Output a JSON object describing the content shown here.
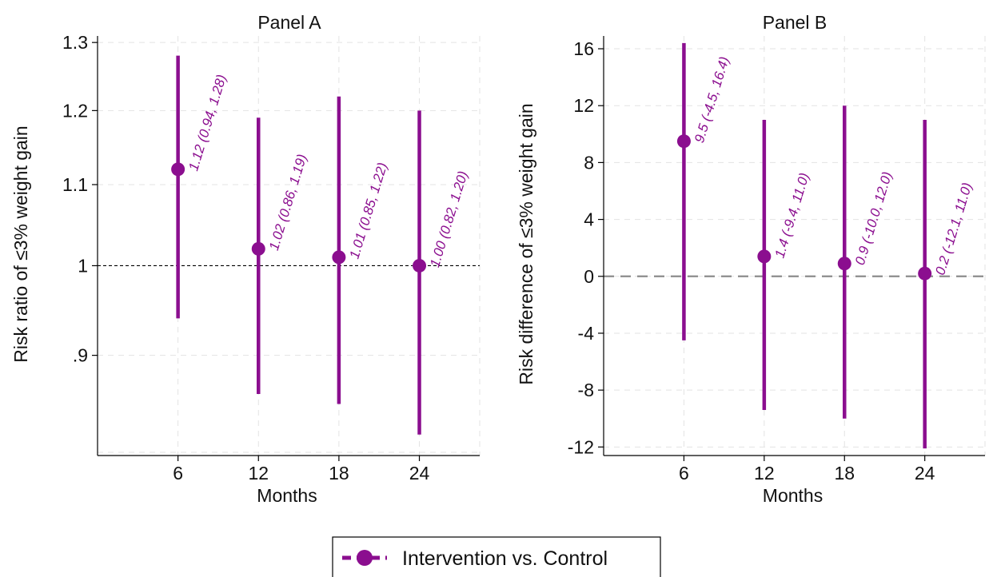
{
  "colors": {
    "series": "#8b0e8f",
    "axis": "#000000",
    "grid": "#e3e3e3"
  },
  "legend": {
    "label": "Intervention vs. Control",
    "placement": "bottom-center"
  },
  "chart_data": [
    {
      "type": "scatter",
      "title": "Panel A",
      "xlabel": "Months",
      "ylabel": "Risk ratio of ≤3% weight gain",
      "x": [
        6,
        12,
        18,
        24
      ],
      "xticks": [
        6,
        12,
        18,
        24
      ],
      "xlim": [
        0,
        28.5
      ],
      "yticks": [
        0.9,
        1.1,
        1.2,
        1.3
      ],
      "ytick_labels": [
        ".9",
        "1.1",
        "1.2",
        "1.3"
      ],
      "extra_ytick": {
        "value": 1.0,
        "label": "1"
      },
      "ylim": [
        0.8,
        1.31
      ],
      "ylog": true,
      "reference_line": {
        "y": 1.0,
        "style": "dashed"
      },
      "grid": true,
      "series": [
        {
          "name": "Intervention vs. Control",
          "estimate": [
            1.12,
            1.02,
            1.01,
            1.0
          ],
          "lower": [
            0.94,
            0.86,
            0.85,
            0.82
          ],
          "upper": [
            1.28,
            1.19,
            1.22,
            1.2
          ]
        }
      ],
      "annotations": [
        "1.12 (0.94, 1.28)",
        "1.02 (0.86, 1.19)",
        "1.01 (0.85, 1.22)",
        "1.00 (0.82, 1.20)"
      ]
    },
    {
      "type": "scatter",
      "title": "Panel B",
      "xlabel": "Months",
      "ylabel": "Risk difference of ≤3% weight gain",
      "x": [
        6,
        12,
        18,
        24
      ],
      "xticks": [
        6,
        12,
        18,
        24
      ],
      "xlim": [
        0,
        28.5
      ],
      "yticks": [
        -12,
        -8,
        -4,
        0,
        4,
        8,
        12,
        16
      ],
      "ytick_labels": [
        "-12",
        "-8",
        "-4",
        "0",
        "4",
        "8",
        "12",
        "16"
      ],
      "ylim": [
        -12.6,
        16.9
      ],
      "ylog": false,
      "reference_line": {
        "y": 0,
        "style": "dashed"
      },
      "grid": true,
      "series": [
        {
          "name": "Intervention vs. Control",
          "estimate": [
            9.5,
            1.4,
            0.9,
            0.2
          ],
          "lower": [
            -4.5,
            -9.4,
            -10.0,
            -12.1
          ],
          "upper": [
            16.4,
            11.0,
            12.0,
            11.0
          ]
        }
      ],
      "annotations": [
        "9.5 (-4.5, 16.4)",
        "1.4 (-9.4, 11.0)",
        "0.9 (-10.0, 12.0)",
        "0.2 (-12.1, 11.0)"
      ]
    }
  ]
}
